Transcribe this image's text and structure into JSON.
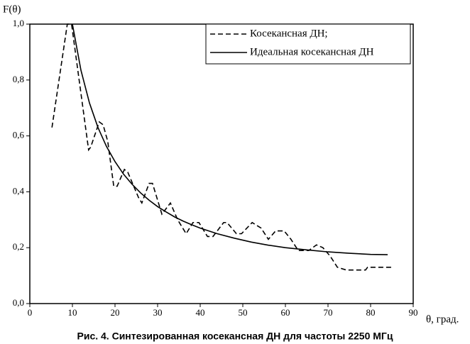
{
  "chart_data": {
    "type": "line",
    "y_label": "F(θ)",
    "x_label": "θ, град.",
    "caption": "Рис. 4. Синтезированная косекансная ДН для частоты 2250 МГц",
    "xlim": [
      0,
      90
    ],
    "ylim": [
      0,
      1
    ],
    "xticks": [
      0,
      10,
      20,
      30,
      40,
      50,
      60,
      70,
      80,
      90
    ],
    "yticks": [
      {
        "value": 0,
        "label": "0,0"
      },
      {
        "value": 0.2,
        "label": "0,2"
      },
      {
        "value": 0.4,
        "label": "0,4"
      },
      {
        "value": 0.6,
        "label": "0,6"
      },
      {
        "value": 0.8,
        "label": "0,8"
      },
      {
        "value": 1,
        "label": "1,0"
      }
    ],
    "legend": "upper right",
    "series": [
      {
        "name": "Косекансная ДН;",
        "color": "#000000",
        "line_style": "dashed",
        "x": [
          5.2,
          8.8,
          9.8,
          12.2,
          13.8,
          14.3,
          16.3,
          17.2,
          18.3,
          19.7,
          20.5,
          22.2,
          23,
          25.5,
          26.3,
          28,
          28.8,
          31,
          33,
          34.7,
          36.7,
          38.3,
          39.7,
          41.7,
          43,
          45.5,
          46.3,
          48.5,
          49.7,
          52.2,
          54.3,
          56,
          57.7,
          59.7,
          61.3,
          63,
          65.5,
          67.3,
          68.8,
          70.5,
          72.2,
          74.3,
          78.8,
          79.3,
          85
        ],
        "values": [
          0.63,
          1.0,
          1.0,
          0.73,
          0.55,
          0.56,
          0.65,
          0.64,
          0.58,
          0.42,
          0.42,
          0.48,
          0.47,
          0.38,
          0.36,
          0.43,
          0.43,
          0.32,
          0.36,
          0.3,
          0.25,
          0.29,
          0.29,
          0.24,
          0.24,
          0.29,
          0.29,
          0.25,
          0.25,
          0.29,
          0.27,
          0.23,
          0.26,
          0.26,
          0.23,
          0.19,
          0.19,
          0.21,
          0.2,
          0.17,
          0.13,
          0.12,
          0.12,
          0.13,
          0.13
        ]
      },
      {
        "name": "Идеальная косекансная ДН",
        "color": "#000000",
        "line_style": "solid",
        "x": [
          10,
          12,
          14,
          16,
          18,
          20,
          22,
          24,
          26,
          28,
          30,
          32,
          34,
          36,
          38,
          40,
          44,
          48,
          52,
          56,
          60,
          65,
          70,
          75,
          80,
          84
        ],
        "values": [
          1.0,
          0.835,
          0.718,
          0.63,
          0.562,
          0.508,
          0.463,
          0.427,
          0.396,
          0.37,
          0.347,
          0.328,
          0.31,
          0.295,
          0.282,
          0.27,
          0.25,
          0.234,
          0.22,
          0.209,
          0.2,
          0.192,
          0.185,
          0.18,
          0.176,
          0.175
        ]
      }
    ]
  }
}
